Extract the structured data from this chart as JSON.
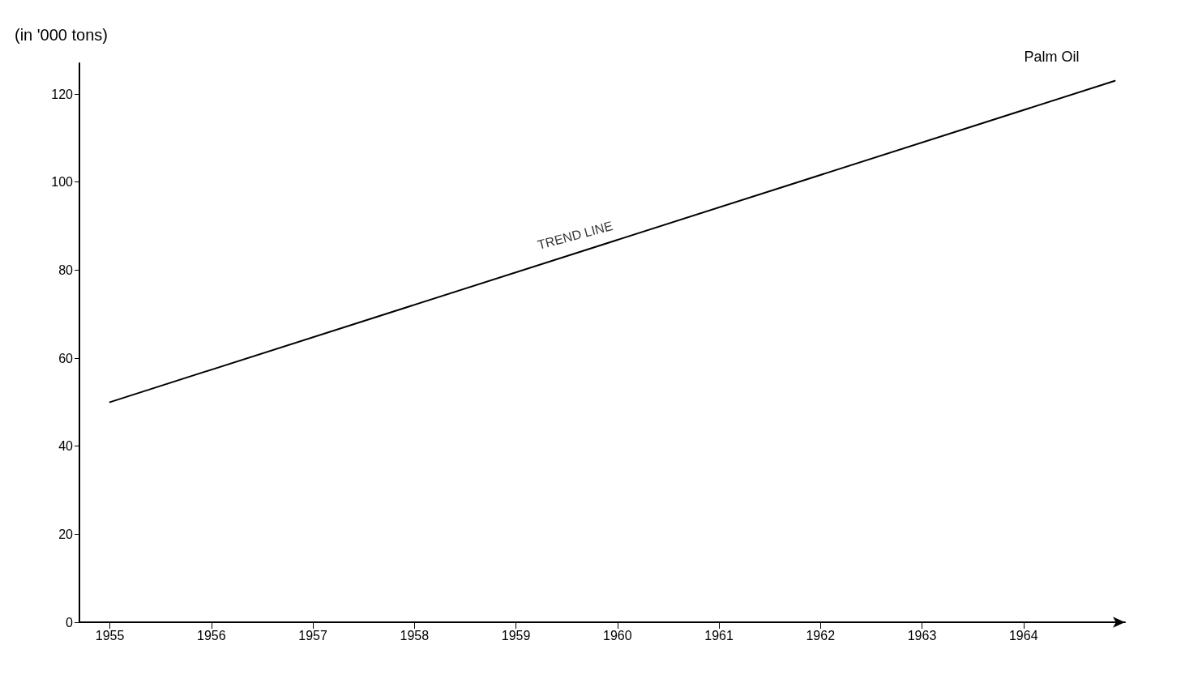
{
  "chart_data": {
    "type": "line",
    "ylabel": "(in '000 tons)",
    "annotations": [
      {
        "text": "TREND LINE",
        "x": 1959.6,
        "y": 83.9
      }
    ],
    "series": [
      {
        "name": "Palm Oil",
        "color": "#000000",
        "x": [
          1955,
          1964.9
        ],
        "values": [
          50,
          123
        ]
      }
    ],
    "xlim": [
      1954.7,
      1965
    ],
    "xticks": [
      1955,
      1956,
      1957,
      1958,
      1959,
      1960,
      1961,
      1962,
      1963,
      1964
    ],
    "ylim": [
      0,
      127
    ],
    "yticks": [
      0,
      20,
      40,
      60,
      80,
      100,
      120
    ],
    "grid": false,
    "legend": false,
    "marker": "none",
    "line_style": "solid"
  }
}
